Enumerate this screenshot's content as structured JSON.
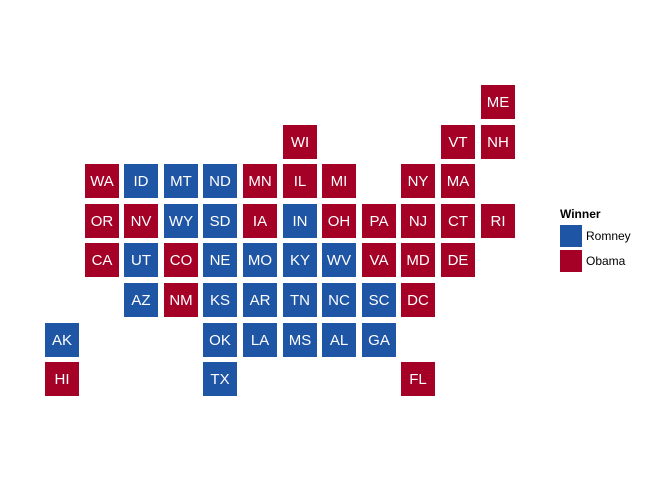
{
  "colors": {
    "Romney": "#1f55a5",
    "Obama": "#a50026"
  },
  "legend": {
    "title": "Winner",
    "items": [
      {
        "label": "Romney",
        "winner": "Romney"
      },
      {
        "label": "Obama",
        "winner": "Obama"
      }
    ]
  },
  "states": [
    {
      "abbr": "ME",
      "row": 0,
      "col": 11,
      "winner": "Obama"
    },
    {
      "abbr": "WI",
      "row": 1,
      "col": 6,
      "winner": "Obama"
    },
    {
      "abbr": "VT",
      "row": 1,
      "col": 10,
      "winner": "Obama"
    },
    {
      "abbr": "NH",
      "row": 1,
      "col": 11,
      "winner": "Obama"
    },
    {
      "abbr": "WA",
      "row": 2,
      "col": 1,
      "winner": "Obama"
    },
    {
      "abbr": "ID",
      "row": 2,
      "col": 2,
      "winner": "Romney"
    },
    {
      "abbr": "MT",
      "row": 2,
      "col": 3,
      "winner": "Romney"
    },
    {
      "abbr": "ND",
      "row": 2,
      "col": 4,
      "winner": "Romney"
    },
    {
      "abbr": "MN",
      "row": 2,
      "col": 5,
      "winner": "Obama"
    },
    {
      "abbr": "IL",
      "row": 2,
      "col": 6,
      "winner": "Obama"
    },
    {
      "abbr": "MI",
      "row": 2,
      "col": 7,
      "winner": "Obama"
    },
    {
      "abbr": "NY",
      "row": 2,
      "col": 9,
      "winner": "Obama"
    },
    {
      "abbr": "MA",
      "row": 2,
      "col": 10,
      "winner": "Obama"
    },
    {
      "abbr": "OR",
      "row": 3,
      "col": 1,
      "winner": "Obama"
    },
    {
      "abbr": "NV",
      "row": 3,
      "col": 2,
      "winner": "Obama"
    },
    {
      "abbr": "WY",
      "row": 3,
      "col": 3,
      "winner": "Romney"
    },
    {
      "abbr": "SD",
      "row": 3,
      "col": 4,
      "winner": "Romney"
    },
    {
      "abbr": "IA",
      "row": 3,
      "col": 5,
      "winner": "Obama"
    },
    {
      "abbr": "IN",
      "row": 3,
      "col": 6,
      "winner": "Romney"
    },
    {
      "abbr": "OH",
      "row": 3,
      "col": 7,
      "winner": "Obama"
    },
    {
      "abbr": "PA",
      "row": 3,
      "col": 8,
      "winner": "Obama"
    },
    {
      "abbr": "NJ",
      "row": 3,
      "col": 9,
      "winner": "Obama"
    },
    {
      "abbr": "CT",
      "row": 3,
      "col": 10,
      "winner": "Obama"
    },
    {
      "abbr": "RI",
      "row": 3,
      "col": 11,
      "winner": "Obama"
    },
    {
      "abbr": "CA",
      "row": 4,
      "col": 1,
      "winner": "Obama"
    },
    {
      "abbr": "UT",
      "row": 4,
      "col": 2,
      "winner": "Romney"
    },
    {
      "abbr": "CO",
      "row": 4,
      "col": 3,
      "winner": "Obama"
    },
    {
      "abbr": "NE",
      "row": 4,
      "col": 4,
      "winner": "Romney"
    },
    {
      "abbr": "MO",
      "row": 4,
      "col": 5,
      "winner": "Romney"
    },
    {
      "abbr": "KY",
      "row": 4,
      "col": 6,
      "winner": "Romney"
    },
    {
      "abbr": "WV",
      "row": 4,
      "col": 7,
      "winner": "Romney"
    },
    {
      "abbr": "VA",
      "row": 4,
      "col": 8,
      "winner": "Obama"
    },
    {
      "abbr": "MD",
      "row": 4,
      "col": 9,
      "winner": "Obama"
    },
    {
      "abbr": "DE",
      "row": 4,
      "col": 10,
      "winner": "Obama"
    },
    {
      "abbr": "AZ",
      "row": 5,
      "col": 2,
      "winner": "Romney"
    },
    {
      "abbr": "NM",
      "row": 5,
      "col": 3,
      "winner": "Obama"
    },
    {
      "abbr": "KS",
      "row": 5,
      "col": 4,
      "winner": "Romney"
    },
    {
      "abbr": "AR",
      "row": 5,
      "col": 5,
      "winner": "Romney"
    },
    {
      "abbr": "TN",
      "row": 5,
      "col": 6,
      "winner": "Romney"
    },
    {
      "abbr": "NC",
      "row": 5,
      "col": 7,
      "winner": "Romney"
    },
    {
      "abbr": "SC",
      "row": 5,
      "col": 8,
      "winner": "Romney"
    },
    {
      "abbr": "DC",
      "row": 5,
      "col": 9,
      "winner": "Obama"
    },
    {
      "abbr": "AK",
      "row": 6,
      "col": 0,
      "winner": "Romney"
    },
    {
      "abbr": "OK",
      "row": 6,
      "col": 4,
      "winner": "Romney"
    },
    {
      "abbr": "LA",
      "row": 6,
      "col": 5,
      "winner": "Romney"
    },
    {
      "abbr": "MS",
      "row": 6,
      "col": 6,
      "winner": "Romney"
    },
    {
      "abbr": "AL",
      "row": 6,
      "col": 7,
      "winner": "Romney"
    },
    {
      "abbr": "GA",
      "row": 6,
      "col": 8,
      "winner": "Romney"
    },
    {
      "abbr": "HI",
      "row": 7,
      "col": 0,
      "winner": "Obama"
    },
    {
      "abbr": "TX",
      "row": 7,
      "col": 4,
      "winner": "Romney"
    },
    {
      "abbr": "FL",
      "row": 7,
      "col": 9,
      "winner": "Obama"
    }
  ]
}
